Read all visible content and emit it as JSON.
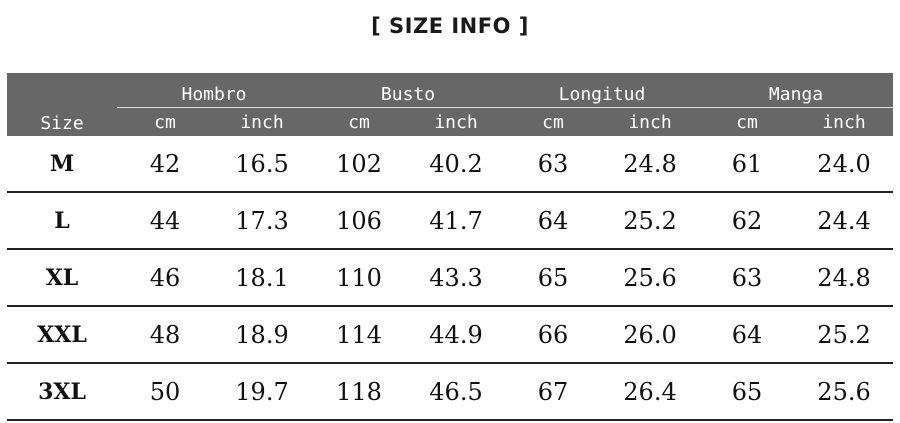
{
  "title": "[ SIZE  INFO ]",
  "table": {
    "size_header": "Size",
    "groups": [
      "Hombro",
      "Busto",
      "Longitud",
      "Manga"
    ],
    "units": [
      "cm",
      "inch",
      "cm",
      "inch",
      "cm",
      "inch",
      "cm",
      "inch"
    ],
    "rows": [
      {
        "size": "M",
        "values": [
          "42",
          "16.5",
          "102",
          "40.2",
          "63",
          "24.8",
          "61",
          "24.0"
        ]
      },
      {
        "size": "L",
        "values": [
          "44",
          "17.3",
          "106",
          "41.7",
          "64",
          "25.2",
          "62",
          "24.4"
        ]
      },
      {
        "size": "XL",
        "values": [
          "46",
          "18.1",
          "110",
          "43.3",
          "65",
          "25.6",
          "63",
          "24.8"
        ]
      },
      {
        "size": "XXL",
        "values": [
          "48",
          "18.9",
          "114",
          "44.9",
          "66",
          "26.0",
          "64",
          "25.2"
        ]
      },
      {
        "size": "3XL",
        "values": [
          "50",
          "19.7",
          "118",
          "46.5",
          "67",
          "26.4",
          "65",
          "25.6"
        ]
      }
    ]
  },
  "colors": {
    "header_bg": "#676767",
    "header_text": "#ffffff",
    "row_divider": "#222222"
  }
}
